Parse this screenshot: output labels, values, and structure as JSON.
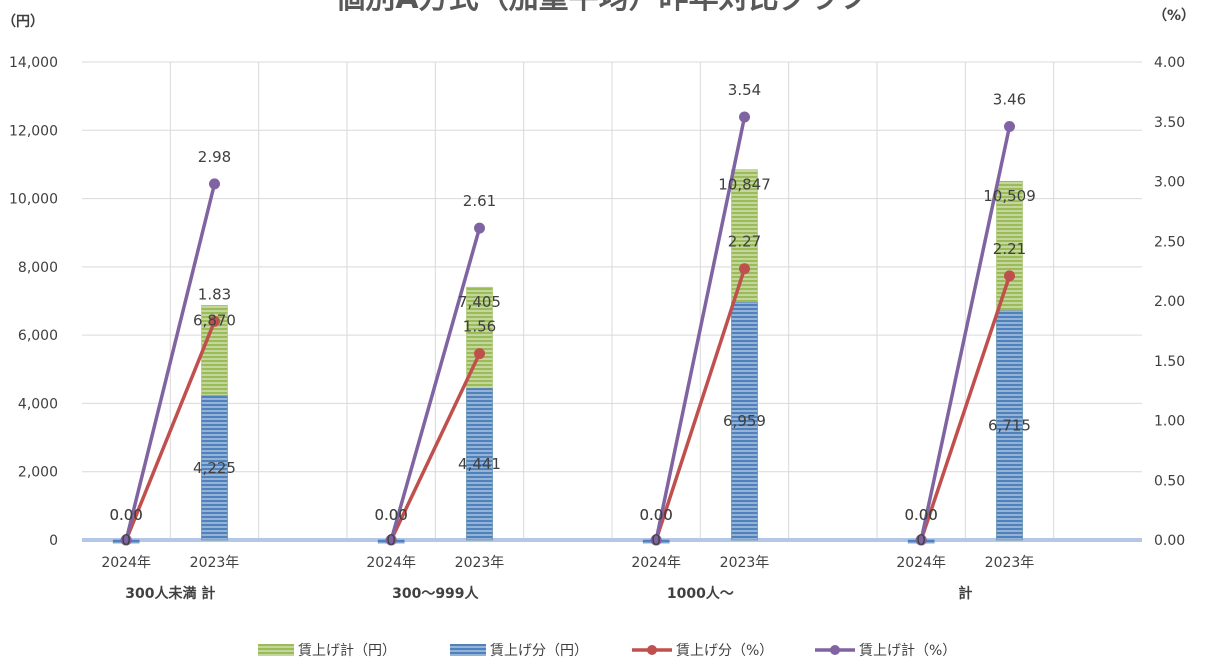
{
  "chart_data": {
    "type": "bar",
    "title": "個別A方式（加重平均）昨年対比グラフ",
    "y_left_unit": "（円）",
    "y_right_unit": "（%）",
    "y_left_ticks": [
      "0",
      "2,000",
      "4,000",
      "6,000",
      "8,000",
      "10,000",
      "12,000",
      "14,000"
    ],
    "y_right_ticks": [
      "0.00",
      "0.50",
      "1.00",
      "1.50",
      "2.00",
      "2.50",
      "3.00",
      "3.50",
      "4.00"
    ],
    "ylim_left": [
      0,
      14000
    ],
    "ylim_right": [
      0,
      4
    ],
    "groups": [
      "300人未満 計",
      "300～999人",
      "1000人～",
      "計"
    ],
    "years": [
      "2024年",
      "2023年"
    ],
    "series": [
      {
        "name": "賃上げ計（円）",
        "kind": "bar",
        "axis": "left",
        "color": "#9BBB59",
        "values": [
          [
            0,
            6870
          ],
          [
            0,
            7405
          ],
          [
            0,
            10847
          ],
          [
            0,
            10509
          ]
        ],
        "labels": [
          [
            "",
            "6,870"
          ],
          [
            "",
            "7,405"
          ],
          [
            "",
            "10,847"
          ],
          [
            "",
            "10,509"
          ]
        ]
      },
      {
        "name": "賃上げ分（円）",
        "kind": "bar",
        "axis": "left",
        "color": "#4F81BD",
        "values": [
          [
            0,
            4225
          ],
          [
            0,
            4441
          ],
          [
            0,
            6959
          ],
          [
            0,
            6715
          ]
        ],
        "labels": [
          [
            "0",
            "4,225"
          ],
          [
            "0",
            "4,441"
          ],
          [
            "0",
            "6,959"
          ],
          [
            "0",
            "6,715"
          ]
        ]
      },
      {
        "name": "賃上げ分（%）",
        "kind": "line",
        "axis": "right",
        "color": "#C0504D",
        "values": [
          [
            0,
            1.83
          ],
          [
            0,
            1.56
          ],
          [
            0,
            2.27
          ],
          [
            0,
            2.21
          ]
        ],
        "labels": [
          [
            "0.00",
            "1.83"
          ],
          [
            "0.00",
            "1.56"
          ],
          [
            "0.00",
            "2.27"
          ],
          [
            "0.00",
            "2.21"
          ]
        ]
      },
      {
        "name": "賃上げ計（%）",
        "kind": "line",
        "axis": "right",
        "color": "#8064A2",
        "values": [
          [
            0,
            2.98
          ],
          [
            0,
            2.61
          ],
          [
            0,
            3.54
          ],
          [
            0,
            3.46
          ]
        ],
        "labels": [
          [
            "0.00",
            "2.98"
          ],
          [
            "0.00",
            "2.61"
          ],
          [
            "0.00",
            "3.54"
          ],
          [
            "0.00",
            "3.46"
          ]
        ]
      }
    ],
    "grid": true,
    "legend_position": "bottom"
  }
}
